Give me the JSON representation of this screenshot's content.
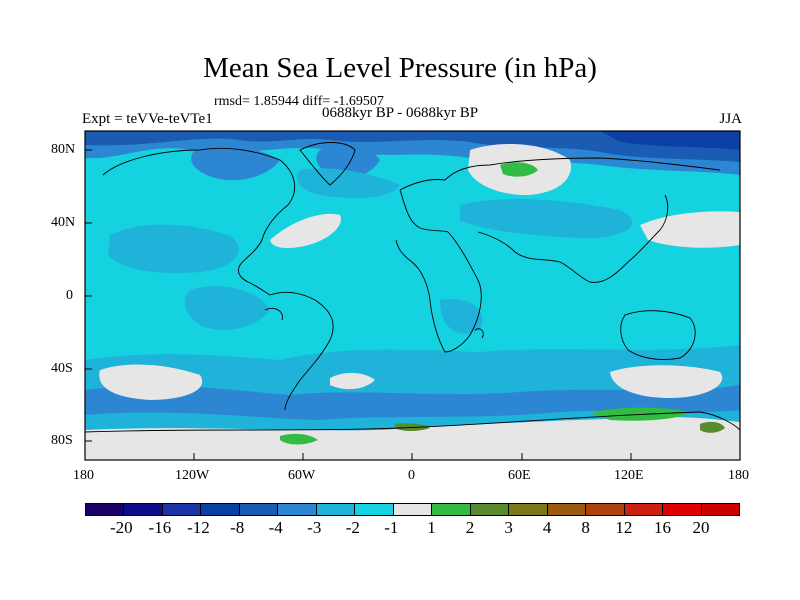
{
  "title": "Mean Sea Level Pressure (in hPa)",
  "stats": "rmsd= 1.85944 diff= -1.69507",
  "left_label": "Expt = teVVe-teVTe1",
  "center_label": "0688kyr BP - 0688kyr BP",
  "right_label": "JJA",
  "lat_ticks": [
    "80N",
    "40N",
    "0",
    "40S",
    "80S"
  ],
  "lon_ticks": [
    "180",
    "120W",
    "60W",
    "0",
    "60E",
    "120E",
    "180"
  ],
  "colorbar": {
    "labels": [
      "-20",
      "-16",
      "-12",
      "-8",
      "-4",
      "-3",
      "-2",
      "-1",
      "1",
      "2",
      "3",
      "4",
      "8",
      "12",
      "16",
      "20"
    ],
    "colors": [
      "#1a0066",
      "#0d0d8c",
      "#1a33a6",
      "#0d40a6",
      "#1a5cb3",
      "#2d86d2",
      "#1fb3d9",
      "#14d2e0",
      "#e6e6e6",
      "#33bb44",
      "#5a8a2e",
      "#7a7a1a",
      "#9a5a10",
      "#b04010",
      "#cc2010",
      "#e00000",
      "#cc0000"
    ]
  },
  "map_colors": {
    "ocean_base": "#14d2e0",
    "band_mid": "#1fb3d9",
    "band_deep": "#2d86d2",
    "band_dark": "#1a5cb3",
    "near_zero": "#e6e6e6",
    "positive": "#33bb44",
    "positive_dark": "#5a8a2e"
  }
}
